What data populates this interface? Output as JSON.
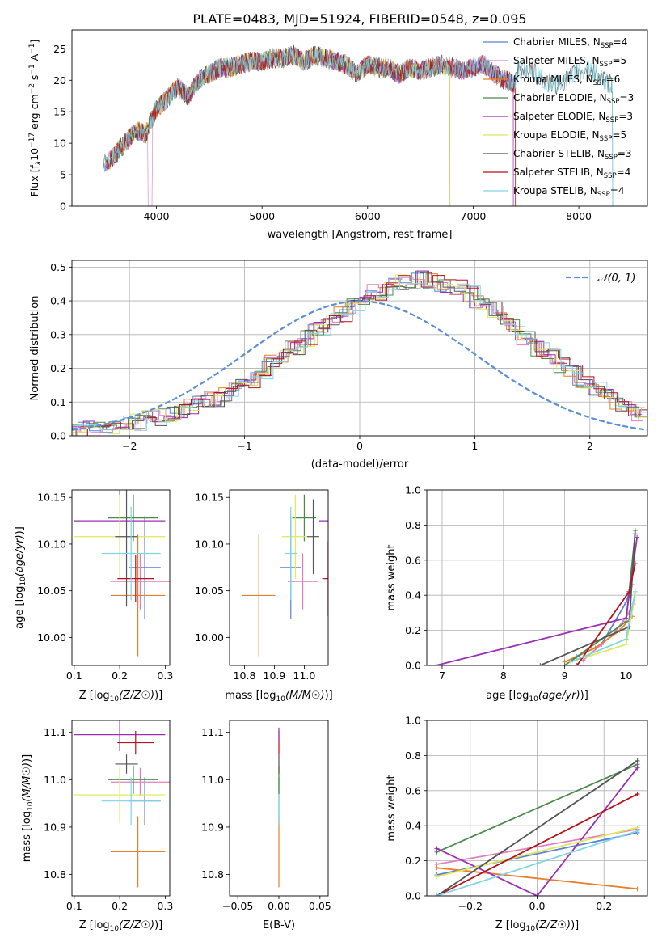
{
  "title": "PLATE=0483, MJD=51924, FIBERID=0548, z=0.095",
  "colors": {
    "Chabrier MILES": "#5b7fd6",
    "Salpeter MILES": "#e07fc0",
    "Kroupa MILES": "#e57f2e",
    "Chabrier ELODIE": "#4c8a4c",
    "Salpeter ELODIE": "#9b2fb5",
    "Kroupa ELODIE": "#dde85a",
    "Chabrier STELIB": "#555555",
    "Salpeter STELIB": "#b5121b",
    "Kroupa STELIB": "#7fd4e6"
  },
  "chart_data": [
    {
      "type": "line",
      "title": "PLATE=0483, MJD=51924, FIBERID=0548, z=0.095",
      "xlabel": "wavelength [Angstrom, rest frame]",
      "ylabel": "Flux [f_λ 10^-17 erg cm^-2 s^-1 A^-1]",
      "ylabel_parts": {
        "a": "Flux [f",
        "b": "λ",
        "c": "10",
        "d": "−17",
        "e": " erg cm",
        "f": "−2",
        "g": " s",
        "h": "−1",
        "i": " A",
        "j": "−1",
        "k": "]"
      },
      "xlim": [
        3200,
        8650
      ],
      "ylim": [
        0,
        28
      ],
      "xticks": [
        "4000",
        "5000",
        "6000",
        "7000",
        "8000"
      ],
      "yticks": [
        "0",
        "5",
        "10",
        "15",
        "20",
        "25"
      ],
      "spectrum_anchor_points": {
        "x": [
          3500,
          3600,
          3700,
          3800,
          3900,
          4000,
          4100,
          4200,
          4300,
          4400,
          4500,
          4600,
          4700,
          4800,
          4900,
          5000,
          5100,
          5200,
          5300,
          5400,
          5500,
          5600,
          5700,
          5800,
          5900,
          6000,
          6100,
          6200,
          6300,
          6400,
          6500,
          6600,
          6700,
          6800,
          6900,
          7000,
          7100,
          7200,
          7300,
          7400
        ],
        "y": [
          6.5,
          8.0,
          10.0,
          12.0,
          11.5,
          15.5,
          17.0,
          19.0,
          17.5,
          20.0,
          21.0,
          22.0,
          22.0,
          22.5,
          23.0,
          23.0,
          23.5,
          23.5,
          24.0,
          23.0,
          24.0,
          23.5,
          23.0,
          22.5,
          21.0,
          22.5,
          22.0,
          22.0,
          21.0,
          22.0,
          21.5,
          22.0,
          22.5,
          22.0,
          21.5,
          22.0,
          22.5,
          21.0,
          20.0,
          19.5
        ]
      },
      "legend": [
        {
          "name": "Chabrier MILES",
          "nssp": "4"
        },
        {
          "name": "Salpeter MILES",
          "nssp": "5"
        },
        {
          "name": "Kroupa MILES",
          "nssp": "6"
        },
        {
          "name": "Chabrier ELODIE",
          "nssp": "3"
        },
        {
          "name": "Salpeter ELODIE",
          "nssp": "3"
        },
        {
          "name": "Kroupa ELODIE",
          "nssp": "5"
        },
        {
          "name": "Chabrier STELIB",
          "nssp": "3"
        },
        {
          "name": "Salpeter STELIB",
          "nssp": "4"
        },
        {
          "name": "Kroupa STELIB",
          "nssp": "4"
        }
      ],
      "legend_prefix": "N",
      "legend_sub": "SSP",
      "legend_placement": "upper-right"
    },
    {
      "type": "histogram",
      "xlabel": "(data-model)/error",
      "ylabel": "Normed distribution",
      "xlim": [
        -2.5,
        2.5
      ],
      "ylim": [
        0,
        0.52
      ],
      "xticks": [
        "−2",
        "−1",
        "0",
        "1",
        "2"
      ],
      "yticks": [
        "0.0",
        "0.1",
        "0.2",
        "0.3",
        "0.4",
        "0.5"
      ],
      "reference_legend": "𝒩(0, 1)",
      "grid": true,
      "bin_width": 0.1,
      "hist_values": [
        0.015,
        0.02,
        0.025,
        0.03,
        0.035,
        0.04,
        0.05,
        0.055,
        0.065,
        0.075,
        0.085,
        0.1,
        0.11,
        0.125,
        0.145,
        0.165,
        0.19,
        0.215,
        0.24,
        0.265,
        0.29,
        0.315,
        0.34,
        0.36,
        0.385,
        0.405,
        0.425,
        0.44,
        0.455,
        0.46,
        0.465,
        0.46,
        0.45,
        0.44,
        0.42,
        0.4,
        0.375,
        0.35,
        0.32,
        0.29,
        0.26,
        0.235,
        0.21,
        0.185,
        0.16,
        0.135,
        0.115,
        0.095,
        0.08,
        0.065
      ]
    },
    {
      "type": "errorbar",
      "xlabel": "Z [log10(Z/Z☉)]",
      "ylabel": "age  [log10(age/yr)]",
      "xlim": [
        0.095,
        0.31
      ],
      "ylim": [
        9.97,
        10.158
      ],
      "xticks": [
        "0.1",
        "0.2",
        "0.3"
      ],
      "yticks": [
        "10.00",
        "10.05",
        "10.10",
        "10.15"
      ],
      "points": [
        {
          "series": "Chabrier MILES",
          "x": 0.255,
          "xerr": 0.035,
          "y": 10.075,
          "yerr": 0.055
        },
        {
          "series": "Salpeter MILES",
          "x": 0.245,
          "xerr": 0.065,
          "y": 10.06,
          "yerr": 0.03
        },
        {
          "series": "Kroupa MILES",
          "x": 0.24,
          "xerr": 0.06,
          "y": 10.045,
          "yerr": 0.065
        },
        {
          "series": "Chabrier ELODIE",
          "x": 0.23,
          "xerr": 0.055,
          "y": 10.128,
          "yerr": 0.025
        },
        {
          "series": "Salpeter ELODIE",
          "x": 0.2,
          "xerr": 0.1,
          "y": 10.125,
          "yerr": 0.04
        },
        {
          "series": "Kroupa ELODIE",
          "x": 0.2,
          "xerr": 0.1,
          "y": 10.108,
          "yerr": 0.045
        },
        {
          "series": "Chabrier STELIB",
          "x": 0.215,
          "xerr": 0.025,
          "y": 10.108,
          "yerr": 0.075
        },
        {
          "series": "Salpeter STELIB",
          "x": 0.235,
          "xerr": 0.04,
          "y": 10.063,
          "yerr": 0.025
        },
        {
          "series": "Kroupa STELIB",
          "x": 0.225,
          "xerr": 0.065,
          "y": 10.09,
          "yerr": 0.05
        }
      ]
    },
    {
      "type": "errorbar",
      "xlabel": "mass [log10(M/M☉)]",
      "ylabel": "",
      "xlim": [
        10.75,
        11.08
      ],
      "ylim": [
        9.97,
        10.158
      ],
      "xticks": [
        "10.8",
        "10.9",
        "11.0"
      ],
      "yticks": [
        "10.00",
        "10.05",
        "10.10",
        "10.15"
      ],
      "points": [
        {
          "series": "Chabrier MILES",
          "x": 10.955,
          "xerr": 0.035,
          "y": 10.075,
          "yerr": 0.055
        },
        {
          "series": "Salpeter MILES",
          "x": 10.995,
          "xerr": 0.05,
          "y": 10.06,
          "yerr": 0.03
        },
        {
          "series": "Kroupa MILES",
          "x": 10.848,
          "xerr": 0.055,
          "y": 10.045,
          "yerr": 0.065
        },
        {
          "series": "Chabrier ELODIE",
          "x": 11.0,
          "xerr": 0.04,
          "y": 10.128,
          "yerr": 0.025
        },
        {
          "series": "Salpeter ELODIE",
          "x": 11.09,
          "xerr": 0.04,
          "y": 10.125,
          "yerr": 0.04
        },
        {
          "series": "Kroupa ELODIE",
          "x": 10.97,
          "xerr": 0.045,
          "y": 10.108,
          "yerr": 0.045
        },
        {
          "series": "Chabrier STELIB",
          "x": 11.03,
          "xerr": 0.02,
          "y": 10.108,
          "yerr": 0.04
        },
        {
          "series": "Salpeter STELIB",
          "x": 11.08,
          "xerr": 0.02,
          "y": 10.063,
          "yerr": 0.04
        },
        {
          "series": "Kroupa STELIB",
          "x": 10.955,
          "xerr": 0.02,
          "y": 10.09,
          "yerr": 0.05
        }
      ]
    },
    {
      "type": "line",
      "xlabel": "age  [log10(age/yr)]",
      "ylabel": "mass weight",
      "xlim": [
        6.75,
        10.35
      ],
      "ylim": [
        0,
        1.0
      ],
      "xticks": [
        "7",
        "8",
        "9",
        "10"
      ],
      "yticks": [
        "0.0",
        "0.2",
        "0.4",
        "0.6",
        "0.8",
        "1.0"
      ],
      "grid": true,
      "series": [
        {
          "name": "Chabrier MILES",
          "x": [
            9.2,
            9.6,
            10.0,
            10.1
          ],
          "y": [
            0.05,
            0.12,
            0.36,
            0.46
          ]
        },
        {
          "name": "Salpeter MILES",
          "x": [
            9.3,
            9.8,
            10.05,
            10.12
          ],
          "y": [
            0.03,
            0.18,
            0.3,
            0.35
          ]
        },
        {
          "name": "Kroupa MILES",
          "x": [
            9.0,
            9.5,
            9.9,
            10.1
          ],
          "y": [
            0.02,
            0.1,
            0.2,
            0.28
          ]
        },
        {
          "name": "Chabrier ELODIE",
          "x": [
            9.0,
            10.0,
            10.15
          ],
          "y": [
            0.0,
            0.25,
            0.75
          ]
        },
        {
          "name": "Salpeter ELODIE",
          "x": [
            6.9,
            10.0,
            10.18
          ],
          "y": [
            0.0,
            0.27,
            0.73
          ]
        },
        {
          "name": "Kroupa ELODIE",
          "x": [
            9.1,
            10.0,
            10.15
          ],
          "y": [
            0.02,
            0.12,
            0.4
          ]
        },
        {
          "name": "Chabrier STELIB",
          "x": [
            8.6,
            10.05,
            10.15
          ],
          "y": [
            0.0,
            0.22,
            0.77
          ]
        },
        {
          "name": "Salpeter STELIB",
          "x": [
            9.2,
            10.05,
            10.15
          ],
          "y": [
            0.0,
            0.42,
            0.58
          ]
        },
        {
          "name": "Kroupa STELIB",
          "x": [
            9.1,
            10.0,
            10.15
          ],
          "y": [
            0.02,
            0.15,
            0.42
          ]
        }
      ]
    },
    {
      "type": "errorbar",
      "xlabel": "Z [log10(Z/Z☉)]",
      "ylabel": "mass [log10(M/M☉)]",
      "xlim": [
        0.095,
        0.31
      ],
      "ylim": [
        10.755,
        11.125
      ],
      "xticks": [
        "0.1",
        "0.2",
        "0.3"
      ],
      "yticks": [
        "10.8",
        "10.9",
        "11.0",
        "11.1"
      ],
      "points": [
        {
          "series": "Chabrier MILES",
          "x": 0.255,
          "xerr": 0.035,
          "y": 10.955,
          "yerr": 0.05
        },
        {
          "series": "Salpeter MILES",
          "x": 0.245,
          "xerr": 0.065,
          "y": 10.995,
          "yerr": 0.03
        },
        {
          "series": "Kroupa MILES",
          "x": 0.24,
          "xerr": 0.06,
          "y": 10.848,
          "yerr": 0.075
        },
        {
          "series": "Chabrier ELODIE",
          "x": 0.23,
          "xerr": 0.055,
          "y": 11.0,
          "yerr": 0.03
        },
        {
          "series": "Salpeter ELODIE",
          "x": 0.2,
          "xerr": 0.1,
          "y": 11.095,
          "yerr": 0.035
        },
        {
          "series": "Kroupa ELODIE",
          "x": 0.2,
          "xerr": 0.1,
          "y": 10.968,
          "yerr": 0.06
        },
        {
          "series": "Chabrier STELIB",
          "x": 0.215,
          "xerr": 0.025,
          "y": 11.033,
          "yerr": 0.02
        },
        {
          "series": "Salpeter STELIB",
          "x": 0.235,
          "xerr": 0.04,
          "y": 11.078,
          "yerr": 0.025
        },
        {
          "series": "Kroupa STELIB",
          "x": 0.225,
          "xerr": 0.065,
          "y": 10.955,
          "yerr": 0.05
        }
      ]
    },
    {
      "type": "errorbar",
      "xlabel": "E(B-V)",
      "ylabel": "",
      "xlim": [
        -0.06,
        0.06
      ],
      "ylim": [
        10.755,
        11.125
      ],
      "xticks": [
        "−0.05",
        "0.00",
        "0.05"
      ],
      "yticks": [
        "10.8",
        "10.9",
        "11.0",
        "11.1"
      ],
      "points": [
        {
          "series": "Kroupa MILES",
          "x": 0.0,
          "xerr": 0.0,
          "y": 10.848,
          "yerr": 0.075
        },
        {
          "series": "Kroupa ELODIE",
          "x": 0.0,
          "xerr": 0.0,
          "y": 10.968,
          "yerr": 0.06
        },
        {
          "series": "Chabrier MILES",
          "x": 0.0,
          "xerr": 0.0,
          "y": 10.955,
          "yerr": 0.05
        },
        {
          "series": "Kroupa STELIB",
          "x": 0.0,
          "xerr": 0.0,
          "y": 10.955,
          "yerr": 0.05
        },
        {
          "series": "Chabrier ELODIE",
          "x": 0.0,
          "xerr": 0.0,
          "y": 11.0,
          "yerr": 0.03
        },
        {
          "series": "Chabrier STELIB",
          "x": 0.0,
          "xerr": 0.0,
          "y": 11.033,
          "yerr": 0.02
        },
        {
          "series": "Salpeter STELIB",
          "x": 0.0,
          "xerr": 0.0,
          "y": 11.078,
          "yerr": 0.025
        },
        {
          "series": "Salpeter ELODIE",
          "x": 0.0,
          "xerr": 0.0,
          "y": 11.095,
          "yerr": 0.015
        }
      ]
    },
    {
      "type": "line",
      "xlabel": "Z [log10(Z/Z☉)]",
      "ylabel": "mass weight",
      "xlim": [
        -0.33,
        0.33
      ],
      "ylim": [
        0,
        1.0
      ],
      "xticks": [
        "−0.2",
        "0.0",
        "0.2"
      ],
      "yticks": [
        "0.0",
        "0.2",
        "0.4",
        "0.6",
        "0.8",
        "1.0"
      ],
      "grid": true,
      "series": [
        {
          "name": "Chabrier MILES",
          "x": [
            -0.3,
            0.3
          ],
          "y": [
            0.12,
            0.36
          ]
        },
        {
          "name": "Salpeter MILES",
          "x": [
            -0.3,
            0.3
          ],
          "y": [
            0.18,
            0.38
          ]
        },
        {
          "name": "Kroupa MILES",
          "x": [
            -0.3,
            0.3
          ],
          "y": [
            0.16,
            0.04
          ]
        },
        {
          "name": "Chabrier ELODIE",
          "x": [
            -0.3,
            0.3
          ],
          "y": [
            0.25,
            0.75
          ]
        },
        {
          "name": "Salpeter ELODIE",
          "x": [
            -0.3,
            0.0,
            0.3
          ],
          "y": [
            0.27,
            0.0,
            0.73
          ]
        },
        {
          "name": "Kroupa ELODIE",
          "x": [
            -0.3,
            0.3
          ],
          "y": [
            0.11,
            0.39
          ]
        },
        {
          "name": "Chabrier STELIB",
          "x": [
            -0.3,
            0.3
          ],
          "y": [
            0.0,
            0.77
          ]
        },
        {
          "name": "Salpeter STELIB",
          "x": [
            -0.3,
            0.3
          ],
          "y": [
            0.0,
            0.58
          ]
        },
        {
          "name": "Kroupa STELIB",
          "x": [
            -0.3,
            0.3
          ],
          "y": [
            0.0,
            0.37
          ]
        }
      ]
    }
  ]
}
